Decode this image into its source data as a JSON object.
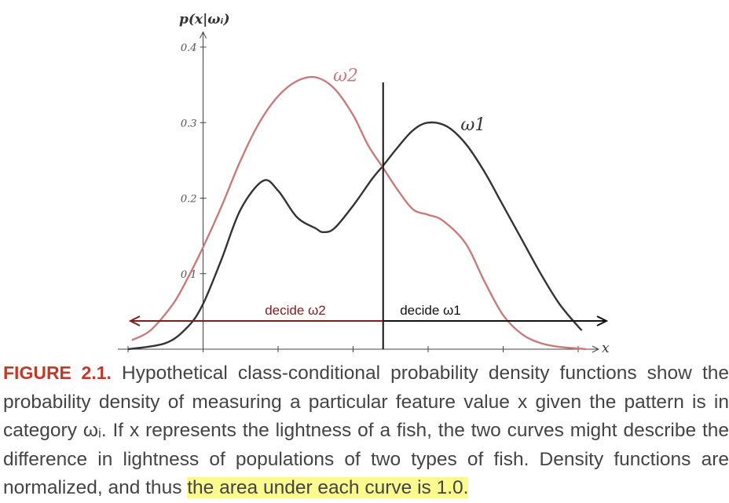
{
  "chart_data": {
    "type": "line",
    "ylabel": "p(x|ωᵢ)",
    "xlabel": "x",
    "xlim": [
      9,
      15.3
    ],
    "ylim": [
      0,
      0.42
    ],
    "xticks": [
      "9",
      "10",
      "11",
      "12",
      "13",
      "14",
      "15"
    ],
    "yticks": [
      "0.1",
      "0.2",
      "0.3",
      "0.4"
    ],
    "grid": false,
    "series": [
      {
        "name": "ω₁",
        "color": "#333333",
        "x": [
          9.0,
          9.5,
          9.8,
          10.0,
          10.25,
          10.5,
          10.8,
          11.0,
          11.25,
          11.5,
          11.6,
          11.75,
          12.0,
          12.25,
          12.4,
          12.6,
          12.8,
          13.0,
          13.25,
          13.5,
          13.75,
          14.0,
          14.25,
          14.5,
          14.75,
          15.0,
          15.05
        ],
        "y": [
          0.0,
          0.008,
          0.03,
          0.06,
          0.12,
          0.185,
          0.223,
          0.21,
          0.175,
          0.16,
          0.155,
          0.16,
          0.19,
          0.225,
          0.243,
          0.268,
          0.29,
          0.3,
          0.295,
          0.272,
          0.235,
          0.19,
          0.145,
          0.1,
          0.06,
          0.03,
          0.025
        ]
      },
      {
        "name": "ω₂",
        "color": "#c87b7b",
        "x": [
          9.05,
          9.3,
          9.6,
          9.8,
          10.0,
          10.25,
          10.5,
          10.75,
          11.0,
          11.25,
          11.5,
          11.75,
          12.0,
          12.2,
          12.4,
          12.6,
          12.8,
          13.0,
          13.2,
          13.5,
          13.75,
          14.0,
          14.25,
          14.5,
          14.75,
          15.0,
          15.1
        ],
        "y": [
          0.012,
          0.025,
          0.06,
          0.095,
          0.135,
          0.19,
          0.25,
          0.3,
          0.335,
          0.355,
          0.36,
          0.345,
          0.31,
          0.27,
          0.24,
          0.21,
          0.185,
          0.178,
          0.17,
          0.14,
          0.09,
          0.045,
          0.02,
          0.008,
          0.003,
          0.001,
          0.0
        ]
      }
    ],
    "decision_boundary_x": 12.4,
    "regions": [
      {
        "label": "decide ω2",
        "direction": "left",
        "color": "#7a1f1f"
      },
      {
        "label": "decide ω1",
        "direction": "right",
        "color": "#111111"
      }
    ],
    "curve_labels": [
      {
        "text": "ω2",
        "x": 11.9,
        "y": 0.355,
        "color": "#c87b7b"
      },
      {
        "text": "ω1",
        "x": 13.6,
        "y": 0.29,
        "color": "#333333"
      }
    ]
  },
  "caption": {
    "label": "FIGURE 2.1.",
    "part1": " Hypothetical class-conditional probability density functions show the probability density of measuring a particular feature value x given the pattern is in category ωᵢ. If x represents the lightness of a fish, the two curves might describe the difference in lightness of populations of two types of fish. Density functions are normalized, and thus ",
    "highlight": "the area under each curve is 1.0."
  }
}
